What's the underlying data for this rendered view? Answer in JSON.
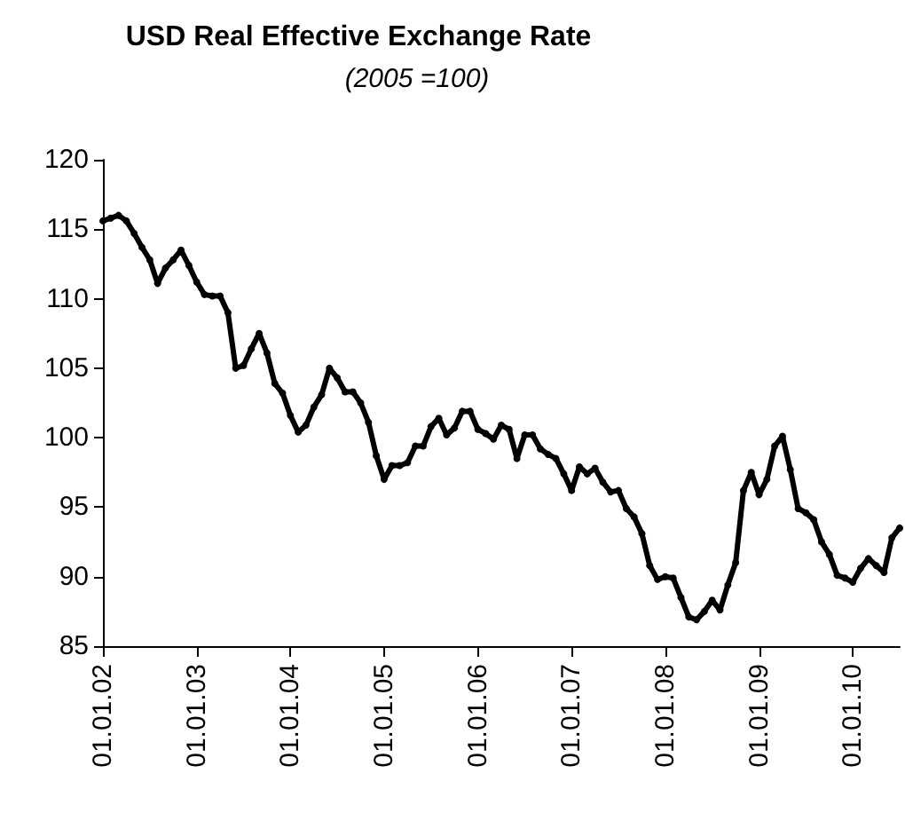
{
  "chart_data": {
    "type": "line",
    "title": "USD Real Effective Exchange Rate",
    "subtitle": "(2005 =100)",
    "categories": [
      "01.01.02",
      null,
      null,
      null,
      null,
      null,
      null,
      null,
      null,
      null,
      null,
      null,
      "01.01.03",
      null,
      null,
      null,
      null,
      null,
      null,
      null,
      null,
      null,
      null,
      null,
      "01.01.04",
      null,
      null,
      null,
      null,
      null,
      null,
      null,
      null,
      null,
      null,
      null,
      "01.01.05",
      null,
      null,
      null,
      null,
      null,
      null,
      null,
      null,
      null,
      null,
      null,
      "01.01.06",
      null,
      null,
      null,
      null,
      null,
      null,
      null,
      null,
      null,
      null,
      null,
      "01.01.07",
      null,
      null,
      null,
      null,
      null,
      null,
      null,
      null,
      null,
      null,
      null,
      "01.01.08",
      null,
      null,
      null,
      null,
      null,
      null,
      null,
      null,
      null,
      null,
      null,
      "01.01.09",
      null,
      null,
      null,
      null,
      null,
      null,
      null,
      null,
      null,
      null,
      null,
      "01.01.10",
      null,
      null,
      null,
      null,
      null,
      null
    ],
    "series": [
      {
        "color": "#000000",
        "values": [
          115.6,
          115.8,
          116.0,
          115.6,
          114.7,
          113.7,
          112.8,
          111.1,
          112.2,
          112.8,
          113.5,
          112.4,
          111.2,
          110.3,
          110.2,
          110.2,
          109.0,
          105.0,
          105.2,
          106.4,
          107.5,
          106.1,
          103.9,
          103.2,
          101.6,
          100.4,
          100.9,
          102.2,
          103.1,
          105.0,
          104.3,
          103.3,
          103.3,
          102.5,
          101.1,
          98.7,
          97.0,
          98.0,
          98.0,
          98.2,
          99.4,
          99.4,
          100.8,
          101.4,
          100.2,
          100.7,
          101.9,
          101.9,
          100.6,
          100.3,
          99.9,
          100.9,
          100.6,
          98.5,
          100.2,
          100.2,
          99.2,
          98.8,
          98.5,
          97.4,
          96.2,
          97.9,
          97.4,
          97.8,
          96.8,
          96.1,
          96.2,
          94.9,
          94.3,
          93.1,
          90.8,
          89.8,
          90.0,
          89.9,
          88.5,
          87.1,
          86.9,
          87.5,
          88.3,
          87.6,
          89.4,
          91.0,
          96.2,
          97.5,
          95.9,
          97.0,
          99.4,
          100.1,
          97.7,
          94.9,
          94.6,
          94.1,
          92.5,
          91.6,
          90.1,
          89.9,
          89.6,
          90.6,
          91.3,
          90.8,
          90.3,
          92.8,
          93.5
        ]
      }
    ],
    "ylim": [
      85,
      120
    ],
    "yticks": [
      85,
      90,
      95,
      100,
      105,
      110,
      115,
      120
    ],
    "marker": "circle",
    "line_style": "solid"
  }
}
